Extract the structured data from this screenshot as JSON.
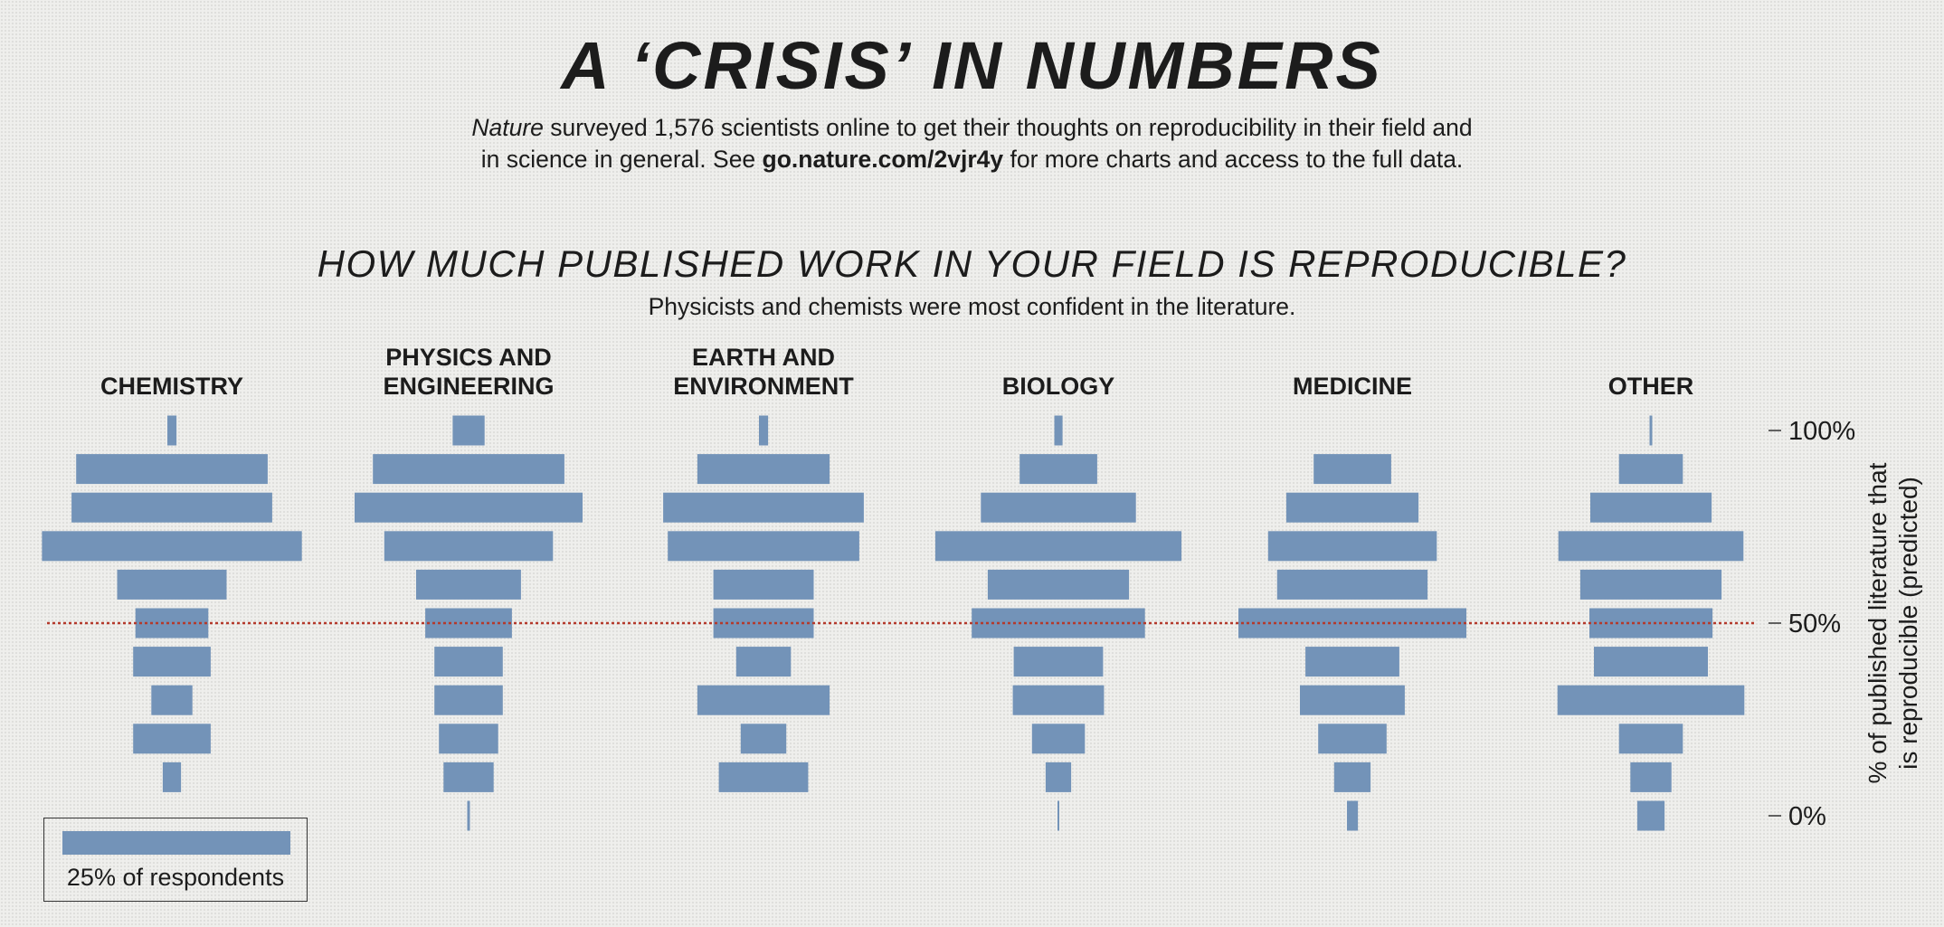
{
  "header": {
    "title": "A ‘CRISIS’ IN NUMBERS",
    "intro_journal": "Nature",
    "intro_part1": " surveyed 1,576 scientists online to get their thoughts on reproducibility in their field and",
    "intro_part2": "in science in general. See ",
    "intro_link": "go.nature.com/2vjr4y",
    "intro_part3": " for more charts and access to the full data."
  },
  "chart_data": {
    "type": "bar",
    "title": "HOW MUCH PUBLISHED WORK IN YOUR FIELD IS REPRODUCIBLE?",
    "subtitle": "Physicists and chemists were most confident in the literature.",
    "ylabel_line1": "% of published literature that",
    "ylabel_line2": "is reproducible (predicted)",
    "y_categories": [
      "100%",
      "90%",
      "80%",
      "70%",
      "60%",
      "50%",
      "40%",
      "30%",
      "20%",
      "10%",
      "0%"
    ],
    "y_tick_labels": [
      "100%",
      "50%",
      "0%"
    ],
    "reference_line": "50%",
    "value_unit": "% of respondents",
    "series": [
      {
        "name": "CHEMISTRY",
        "label_lines": [
          "CHEMISTRY"
        ],
        "values": [
          1,
          21,
          22,
          28.5,
          12,
          8,
          8.5,
          4.5,
          8.5,
          2,
          0
        ]
      },
      {
        "name": "PHYSICS AND ENGINEERING",
        "label_lines": [
          "PHYSICS AND",
          "ENGINEERING"
        ],
        "values": [
          3.5,
          21,
          25,
          18.5,
          11.5,
          9.5,
          7.5,
          7.5,
          6.5,
          5.5,
          0.3
        ]
      },
      {
        "name": "EARTH AND ENVIRONMENT",
        "label_lines": [
          "EARTH AND",
          "ENVIRONMENT"
        ],
        "values": [
          1,
          14.5,
          22,
          21,
          11,
          11,
          6,
          14.5,
          5,
          9.8,
          0
        ]
      },
      {
        "name": "BIOLOGY",
        "label_lines": [
          "BIOLOGY"
        ],
        "values": [
          0.9,
          8.5,
          17,
          27,
          15.5,
          19,
          9.8,
          10,
          5.8,
          2.8,
          0.2
        ]
      },
      {
        "name": "MEDICINE",
        "label_lines": [
          "MEDICINE"
        ],
        "values": [
          0,
          8.5,
          14.5,
          18.5,
          16.5,
          25,
          10.3,
          11.5,
          7.5,
          4,
          1.2
        ]
      },
      {
        "name": "OTHER",
        "label_lines": [
          "OTHER"
        ],
        "values": [
          0.3,
          7,
          13.3,
          20.3,
          15.5,
          13.5,
          12.5,
          20.5,
          7,
          4.5,
          3
        ]
      }
    ],
    "legend": {
      "value": 25,
      "label": "25% of respondents"
    },
    "colors": {
      "bar": "#7393b8",
      "reference": "#b43a2c",
      "text": "#1c1c1c"
    }
  }
}
